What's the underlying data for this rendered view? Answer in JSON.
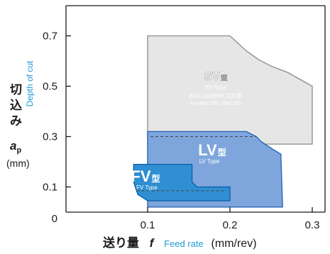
{
  "chart_data": {
    "type": "area",
    "xlabel": {
      "jp": "送り量",
      "symbol": "f",
      "en": "Feed rate",
      "unit": "(mm/rev)"
    },
    "ylabel": {
      "jp": "切込み",
      "symbol": "a",
      "subscript": "p",
      "en": "Depth of cut",
      "unit": "(mm)"
    },
    "xlim": [
      0,
      0.3
    ],
    "ylim": [
      0,
      0.8
    ],
    "x_ticks": [
      {
        "value": 0.1,
        "label": "0.1"
      },
      {
        "value": 0.2,
        "label": "0.2"
      },
      {
        "value": 0.3,
        "label": "0.3"
      }
    ],
    "y_ticks": [
      {
        "value": 0.0,
        "label": "0"
      },
      {
        "value": 0.1,
        "label": "0.1"
      },
      {
        "value": 0.3,
        "label": "0.3"
      },
      {
        "value": 0.5,
        "label": "0.5"
      },
      {
        "value": 0.7,
        "label": "0.7"
      }
    ],
    "grid": false,
    "regions": [
      {
        "name": "SV",
        "title": "SV",
        "type_mark": "型",
        "type_label": "SV Type",
        "notes": [
          "BNC160/BNC200用",
          "For BNC160 / BNC200"
        ],
        "fill": "#e6e6e6",
        "stroke": "#8c8c8c",
        "polygon": [
          [
            0.1,
            0.7
          ],
          [
            0.2,
            0.7
          ],
          [
            0.21,
            0.67
          ],
          [
            0.22,
            0.64
          ],
          [
            0.235,
            0.605
          ],
          [
            0.25,
            0.58
          ],
          [
            0.27,
            0.555
          ],
          [
            0.3,
            0.5
          ],
          [
            0.3,
            0.27
          ],
          [
            0.1,
            0.27
          ]
        ]
      },
      {
        "name": "LV",
        "title": "LV",
        "type_mark": "型",
        "type_label": "LV Type",
        "fill": "#7ea6dc",
        "stroke": "#1f5fb5",
        "polygon": [
          [
            0.1,
            0.32
          ],
          [
            0.22,
            0.32
          ],
          [
            0.232,
            0.3
          ],
          [
            0.238,
            0.28
          ],
          [
            0.252,
            0.25
          ],
          [
            0.262,
            0.23
          ],
          [
            0.262,
            0.22
          ],
          [
            0.264,
            0.02
          ],
          [
            0.1,
            0.02
          ]
        ],
        "dashed_y": 0.3
      },
      {
        "name": "FV",
        "title": "FV",
        "type_mark": "型",
        "type_label": "FV Type",
        "fill": "#2f8fd2",
        "stroke": "#0b5ea8",
        "polygon": [
          [
            0.083,
            0.19
          ],
          [
            0.154,
            0.19
          ],
          [
            0.154,
            0.12
          ],
          [
            0.16,
            0.1
          ],
          [
            0.2,
            0.1
          ],
          [
            0.2,
            0.045
          ],
          [
            0.1,
            0.045
          ],
          [
            0.088,
            0.07
          ],
          [
            0.083,
            0.12
          ]
        ],
        "dashed_y": 0.085
      }
    ]
  },
  "colors": {
    "axis": "#1a1a1a",
    "ylabel_en": "#1e9ad6",
    "xlabel_en": "#1e9ad6",
    "region_title_text": "#ffffff"
  }
}
